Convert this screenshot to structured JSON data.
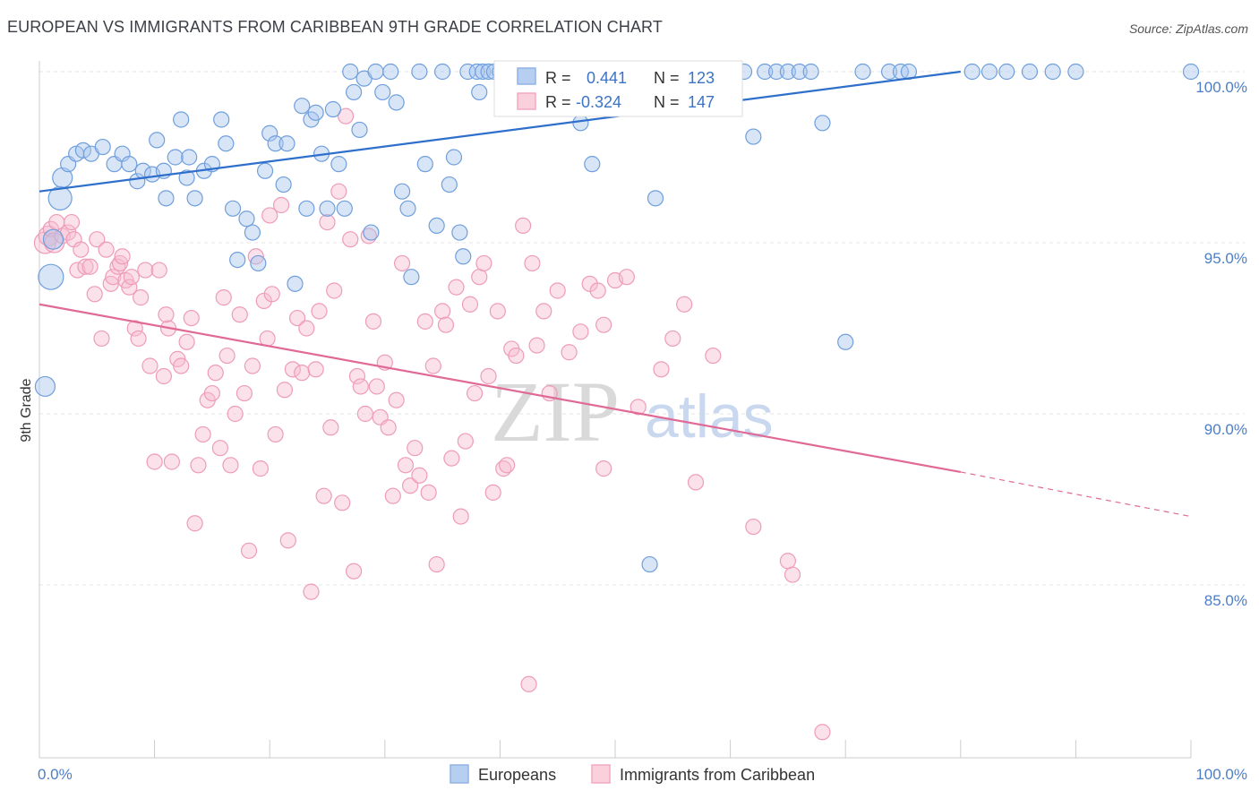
{
  "header": {
    "title": "EUROPEAN VS IMMIGRANTS FROM CARIBBEAN 9TH GRADE CORRELATION CHART",
    "source": "Source: ZipAtlas.com"
  },
  "watermark": {
    "zip": "ZIP",
    "atlas": "atlas"
  },
  "legend": {
    "series": [
      {
        "r_label": "R =",
        "r_value": "0.441",
        "n_label": "N =",
        "n_value": "123"
      },
      {
        "r_label": "R =",
        "r_value": "-0.324",
        "n_label": "N =",
        "n_value": "147"
      }
    ]
  },
  "bottom_legend": {
    "europeans": "Europeans",
    "caribbean": "Immigrants from Caribbean"
  },
  "chart_data": {
    "type": "scatter",
    "title": "EUROPEAN VS IMMIGRANTS FROM CARIBBEAN 9TH GRADE CORRELATION CHART",
    "ylabel": "9th Grade",
    "xlabel": "",
    "xlim": [
      0,
      100
    ],
    "ylim": [
      80.5,
      100.5
    ],
    "x_tick_labels": [
      "0.0%",
      "100.0%"
    ],
    "y_ticks": [
      85.0,
      90.0,
      95.0,
      100.0
    ],
    "y_tick_labels": [
      "85.0%",
      "90.0%",
      "95.0%",
      "100.0%"
    ],
    "grid": true,
    "legend_position": "top-center",
    "colors": {
      "europeans": "#8fb4e6",
      "europeans_line": "#2e6fcc",
      "caribbean": "#f4a9c2",
      "caribbean_line": "#e06a95"
    },
    "series": [
      {
        "name": "Europeans",
        "trend": {
          "x": [
            0,
            80
          ],
          "y": [
            96.5,
            100.0
          ]
        },
        "points": [
          [
            0.5,
            90.8
          ],
          [
            1.0,
            94.0
          ],
          [
            1.2,
            95.1
          ],
          [
            1.8,
            96.3
          ],
          [
            2.0,
            96.9
          ],
          [
            2.5,
            97.3
          ],
          [
            3.2,
            97.6
          ],
          [
            3.8,
            97.7
          ],
          [
            4.5,
            97.6
          ],
          [
            5.5,
            97.8
          ],
          [
            6.5,
            97.3
          ],
          [
            7.2,
            97.6
          ],
          [
            7.8,
            97.3
          ],
          [
            8.5,
            96.8
          ],
          [
            9.0,
            97.1
          ],
          [
            9.8,
            97.0
          ],
          [
            10.2,
            98.0
          ],
          [
            10.8,
            97.1
          ],
          [
            11.0,
            96.3
          ],
          [
            11.8,
            97.5
          ],
          [
            12.3,
            98.6
          ],
          [
            13.0,
            97.5
          ],
          [
            12.8,
            96.9
          ],
          [
            13.5,
            96.3
          ],
          [
            14.3,
            97.1
          ],
          [
            15.0,
            97.3
          ],
          [
            15.8,
            98.6
          ],
          [
            16.2,
            97.9
          ],
          [
            16.8,
            96.0
          ],
          [
            17.2,
            94.5
          ],
          [
            18.0,
            95.7
          ],
          [
            18.5,
            95.3
          ],
          [
            19.0,
            94.4
          ],
          [
            19.6,
            97.1
          ],
          [
            20.0,
            98.2
          ],
          [
            20.5,
            97.9
          ],
          [
            21.2,
            96.7
          ],
          [
            21.5,
            97.9
          ],
          [
            22.2,
            93.8
          ],
          [
            22.8,
            99.0
          ],
          [
            23.2,
            96.0
          ],
          [
            23.6,
            98.6
          ],
          [
            24.0,
            98.8
          ],
          [
            24.5,
            97.6
          ],
          [
            25.0,
            96.0
          ],
          [
            25.5,
            98.9
          ],
          [
            26.0,
            97.3
          ],
          [
            26.5,
            96.0
          ],
          [
            27.0,
            100.0
          ],
          [
            27.3,
            99.4
          ],
          [
            27.8,
            98.3
          ],
          [
            28.2,
            99.8
          ],
          [
            28.8,
            95.3
          ],
          [
            29.2,
            100.0
          ],
          [
            29.8,
            99.4
          ],
          [
            30.5,
            100.0
          ],
          [
            31.0,
            99.1
          ],
          [
            31.5,
            96.5
          ],
          [
            32.0,
            96.0
          ],
          [
            32.3,
            94.0
          ],
          [
            33.0,
            100.0
          ],
          [
            33.5,
            97.3
          ],
          [
            34.5,
            95.5
          ],
          [
            35.0,
            100.0
          ],
          [
            35.6,
            96.7
          ],
          [
            36.0,
            97.5
          ],
          [
            36.5,
            95.3
          ],
          [
            36.8,
            94.6
          ],
          [
            37.2,
            100.0
          ],
          [
            38.0,
            100.0
          ],
          [
            38.5,
            100.0
          ],
          [
            39.0,
            100.0
          ],
          [
            39.5,
            100.0
          ],
          [
            40.0,
            100.0
          ],
          [
            40.5,
            100.0
          ],
          [
            41.0,
            100.0
          ],
          [
            41.6,
            100.0
          ],
          [
            42.0,
            100.0
          ],
          [
            42.5,
            100.0
          ],
          [
            43.0,
            100.0
          ],
          [
            43.5,
            100.0
          ],
          [
            44.2,
            100.0
          ],
          [
            45.0,
            100.0
          ],
          [
            45.8,
            100.0
          ],
          [
            46.5,
            100.0
          ],
          [
            47.0,
            98.5
          ],
          [
            47.5,
            100.0
          ],
          [
            48.2,
            100.0
          ],
          [
            49.0,
            100.0
          ],
          [
            50.0,
            100.0
          ],
          [
            50.8,
            100.0
          ],
          [
            51.5,
            100.0
          ],
          [
            52.2,
            100.0
          ],
          [
            53.0,
            100.0
          ],
          [
            53.8,
            100.0
          ],
          [
            54.5,
            100.0
          ],
          [
            55.2,
            100.0
          ],
          [
            56.0,
            100.0
          ],
          [
            56.8,
            100.0
          ],
          [
            57.5,
            100.0
          ],
          [
            58.2,
            100.0
          ],
          [
            59.0,
            100.0
          ],
          [
            60.0,
            100.0
          ],
          [
            61.2,
            100.0
          ],
          [
            62.0,
            98.1
          ],
          [
            63.0,
            100.0
          ],
          [
            64.0,
            100.0
          ],
          [
            65.0,
            100.0
          ],
          [
            66.0,
            100.0
          ],
          [
            67.0,
            100.0
          ],
          [
            68.0,
            98.5
          ],
          [
            70.0,
            92.1
          ],
          [
            71.5,
            100.0
          ],
          [
            73.8,
            100.0
          ],
          [
            74.8,
            100.0
          ],
          [
            75.5,
            100.0
          ],
          [
            81.0,
            100.0
          ],
          [
            82.5,
            100.0
          ],
          [
            84.0,
            100.0
          ],
          [
            86.0,
            100.0
          ],
          [
            88.0,
            100.0
          ],
          [
            90.0,
            100.0
          ],
          [
            100.0,
            100.0
          ],
          [
            48.0,
            97.3
          ],
          [
            53.5,
            96.3
          ],
          [
            53.0,
            85.6
          ],
          [
            38.2,
            99.4
          ]
        ]
      },
      {
        "name": "Immigrants from Caribbean",
        "trend": {
          "x": [
            0,
            80
          ],
          "y": [
            93.2,
            88.3
          ]
        },
        "trend_dashed": {
          "x": [
            80,
            100
          ],
          "y": [
            88.3,
            87.0
          ]
        },
        "points": [
          [
            0.5,
            95.0
          ],
          [
            0.8,
            95.2
          ],
          [
            1.0,
            95.4
          ],
          [
            1.3,
            95.0
          ],
          [
            1.5,
            95.6
          ],
          [
            2.0,
            95.2
          ],
          [
            2.5,
            95.3
          ],
          [
            2.8,
            95.6
          ],
          [
            3.0,
            95.1
          ],
          [
            3.3,
            94.2
          ],
          [
            3.6,
            94.8
          ],
          [
            4.0,
            94.3
          ],
          [
            4.4,
            94.3
          ],
          [
            4.8,
            93.5
          ],
          [
            5.0,
            95.1
          ],
          [
            5.4,
            92.2
          ],
          [
            5.8,
            94.8
          ],
          [
            6.2,
            93.8
          ],
          [
            6.4,
            94.0
          ],
          [
            6.8,
            94.3
          ],
          [
            7.0,
            94.4
          ],
          [
            7.2,
            94.6
          ],
          [
            7.5,
            93.9
          ],
          [
            7.8,
            93.7
          ],
          [
            8.0,
            94.0
          ],
          [
            8.3,
            92.5
          ],
          [
            8.6,
            92.2
          ],
          [
            8.8,
            93.4
          ],
          [
            9.2,
            94.2
          ],
          [
            9.6,
            91.4
          ],
          [
            10.0,
            88.6
          ],
          [
            10.4,
            94.2
          ],
          [
            10.8,
            91.1
          ],
          [
            11.2,
            92.5
          ],
          [
            11.5,
            88.6
          ],
          [
            12.0,
            91.6
          ],
          [
            12.3,
            91.4
          ],
          [
            12.8,
            92.1
          ],
          [
            13.2,
            92.8
          ],
          [
            13.5,
            86.8
          ],
          [
            13.8,
            88.5
          ],
          [
            14.2,
            89.4
          ],
          [
            14.6,
            90.4
          ],
          [
            15.0,
            90.6
          ],
          [
            15.3,
            91.2
          ],
          [
            15.7,
            89.0
          ],
          [
            16.0,
            93.4
          ],
          [
            16.3,
            91.7
          ],
          [
            16.6,
            88.5
          ],
          [
            17.0,
            90.0
          ],
          [
            17.4,
            92.9
          ],
          [
            17.8,
            90.6
          ],
          [
            18.2,
            86.0
          ],
          [
            18.5,
            91.4
          ],
          [
            18.8,
            94.6
          ],
          [
            19.2,
            88.4
          ],
          [
            19.5,
            93.3
          ],
          [
            19.8,
            92.2
          ],
          [
            20.2,
            93.5
          ],
          [
            20.5,
            89.4
          ],
          [
            21.0,
            96.1
          ],
          [
            21.3,
            90.7
          ],
          [
            21.6,
            86.3
          ],
          [
            22.0,
            91.3
          ],
          [
            22.4,
            92.8
          ],
          [
            22.8,
            91.2
          ],
          [
            23.2,
            92.5
          ],
          [
            23.6,
            84.8
          ],
          [
            24.0,
            91.3
          ],
          [
            24.3,
            93.0
          ],
          [
            24.7,
            87.6
          ],
          [
            25.0,
            95.6
          ],
          [
            25.3,
            89.6
          ],
          [
            25.6,
            93.6
          ],
          [
            26.0,
            96.5
          ],
          [
            26.3,
            87.4
          ],
          [
            26.6,
            98.7
          ],
          [
            27.0,
            95.1
          ],
          [
            27.3,
            85.4
          ],
          [
            27.6,
            91.1
          ],
          [
            27.9,
            90.8
          ],
          [
            28.3,
            90.0
          ],
          [
            28.6,
            95.2
          ],
          [
            29.0,
            92.7
          ],
          [
            29.3,
            90.8
          ],
          [
            29.6,
            89.9
          ],
          [
            30.0,
            91.5
          ],
          [
            30.3,
            89.6
          ],
          [
            30.7,
            87.6
          ],
          [
            31.0,
            90.4
          ],
          [
            31.5,
            94.4
          ],
          [
            31.8,
            88.5
          ],
          [
            32.2,
            87.9
          ],
          [
            32.6,
            89.0
          ],
          [
            33.0,
            88.2
          ],
          [
            33.5,
            92.7
          ],
          [
            33.8,
            87.7
          ],
          [
            34.2,
            91.4
          ],
          [
            34.5,
            85.6
          ],
          [
            35.0,
            93.0
          ],
          [
            35.3,
            92.6
          ],
          [
            35.8,
            88.7
          ],
          [
            36.2,
            93.7
          ],
          [
            36.6,
            87.0
          ],
          [
            37.0,
            89.2
          ],
          [
            37.4,
            93.2
          ],
          [
            37.8,
            90.6
          ],
          [
            38.2,
            94.0
          ],
          [
            38.6,
            94.4
          ],
          [
            39.0,
            91.1
          ],
          [
            39.4,
            87.7
          ],
          [
            39.8,
            93.0
          ],
          [
            40.3,
            88.4
          ],
          [
            40.6,
            88.5
          ],
          [
            41.0,
            91.9
          ],
          [
            41.4,
            91.7
          ],
          [
            42.0,
            95.5
          ],
          [
            42.5,
            82.1
          ],
          [
            42.8,
            94.4
          ],
          [
            43.2,
            92.0
          ],
          [
            43.8,
            93.0
          ],
          [
            44.3,
            90.6
          ],
          [
            45.0,
            93.6
          ],
          [
            46.0,
            91.8
          ],
          [
            47.0,
            92.4
          ],
          [
            47.8,
            93.8
          ],
          [
            48.5,
            93.6
          ],
          [
            49.0,
            92.6
          ],
          [
            50.0,
            93.9
          ],
          [
            51.0,
            94.0
          ],
          [
            52.0,
            90.2
          ],
          [
            54.0,
            91.3
          ],
          [
            55.0,
            92.2
          ],
          [
            56.0,
            93.2
          ],
          [
            57.0,
            88.0
          ],
          [
            58.5,
            91.7
          ],
          [
            62.0,
            86.7
          ],
          [
            65.0,
            85.7
          ],
          [
            65.4,
            85.3
          ],
          [
            68.0,
            80.7
          ],
          [
            49.0,
            88.4
          ],
          [
            20.0,
            95.8
          ],
          [
            11.0,
            92.9
          ]
        ]
      }
    ]
  }
}
